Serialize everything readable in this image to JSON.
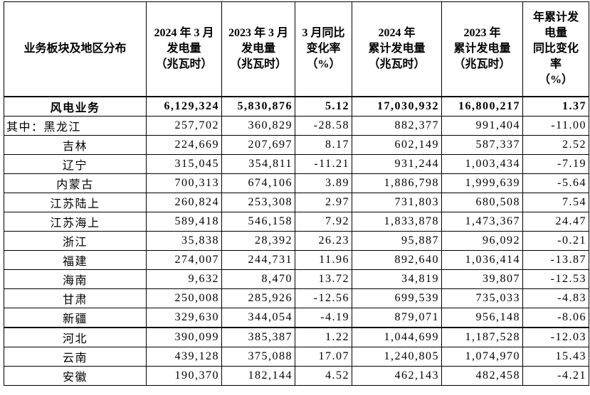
{
  "table": {
    "header": [
      [
        "业务板块及地区分布"
      ],
      [
        "2024 年 3 月",
        "发电量",
        "（兆瓦时）"
      ],
      [
        "2023 年 3 月",
        "发电量",
        "（兆瓦时）"
      ],
      [
        "3 月同比",
        "变化率",
        "（%）"
      ],
      [
        "2024 年",
        "累计发电量",
        "（兆瓦时）"
      ],
      [
        "2023 年",
        "累计发电量",
        "（兆瓦时）"
      ],
      [
        "年累计发",
        "电量",
        "同比变化",
        "率",
        "（%）"
      ]
    ],
    "rows": [
      [
        "风电业务",
        "6,129,324",
        "5,830,876",
        "5.12",
        "17,030,932",
        "16,800,217",
        "1.37"
      ],
      [
        "其中：黑龙江",
        "257,702",
        "360,829",
        "-28.58",
        "882,377",
        "991,404",
        "-11.00"
      ],
      [
        "吉林",
        "224,669",
        "207,697",
        "8.17",
        "602,149",
        "587,337",
        "2.52"
      ],
      [
        "辽宁",
        "315,045",
        "354,811",
        "-11.21",
        "931,244",
        "1,003,434",
        "-7.19"
      ],
      [
        "内蒙古",
        "700,313",
        "674,106",
        "3.89",
        "1,886,798",
        "1,999,639",
        "-5.64"
      ],
      [
        "江苏陆上",
        "260,824",
        "253,308",
        "2.97",
        "731,803",
        "680,508",
        "7.54"
      ],
      [
        "江苏海上",
        "589,418",
        "546,158",
        "7.92",
        "1,833,878",
        "1,473,367",
        "24.47"
      ],
      [
        "浙江",
        "35,838",
        "28,392",
        "26.23",
        "95,887",
        "96,092",
        "-0.21"
      ],
      [
        "福建",
        "274,007",
        "244,731",
        "11.96",
        "892,640",
        "1,036,414",
        "-13.87"
      ],
      [
        "海南",
        "9,632",
        "8,470",
        "13.72",
        "34,819",
        "39,807",
        "-12.53"
      ],
      [
        "甘肃",
        "250,008",
        "285,926",
        "-12.56",
        "699,539",
        "735,033",
        "-4.83"
      ],
      [
        "新疆",
        "329,630",
        "344,054",
        "-4.19",
        "879,071",
        "956,148",
        "-8.06"
      ],
      [
        "河北",
        "390,099",
        "385,387",
        "1.22",
        "1,044,699",
        "1,187,528",
        "-12.03"
      ],
      [
        "云南",
        "439,128",
        "375,088",
        "17.07",
        "1,240,805",
        "1,074,970",
        "15.43"
      ],
      [
        "安徽",
        "190,370",
        "182,144",
        "4.52",
        "462,143",
        "482,458",
        "-4.21"
      ]
    ]
  }
}
